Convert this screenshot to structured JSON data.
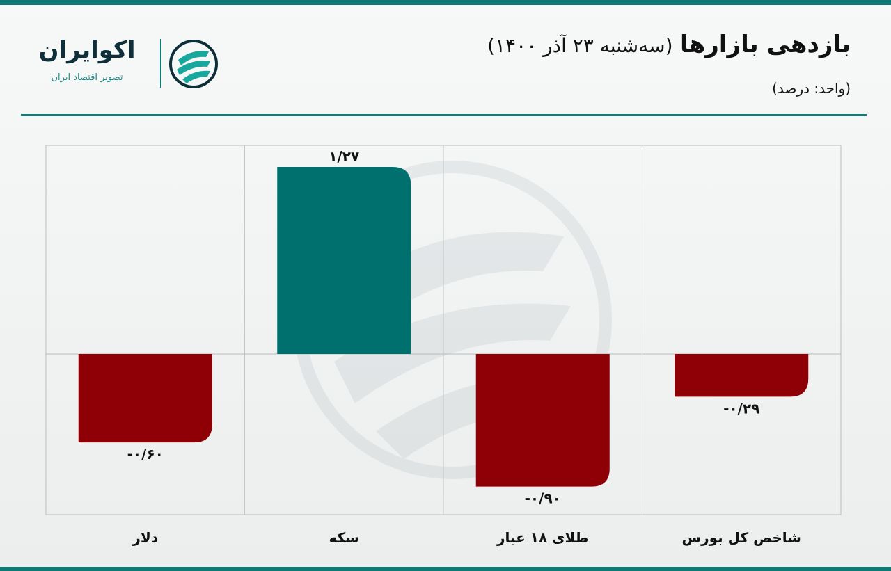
{
  "header": {
    "title_main": "بازدهی بازارها",
    "title_date": "(سه‌شنبه ۲۳ آذر ۱۴۰۰)",
    "unit": "(واحد: درصد)"
  },
  "logo": {
    "name": "اکوایران",
    "tagline": "تصویر اقتصاد ایران"
  },
  "colors": {
    "accent": "#0d7a76",
    "positive": "#00706e",
    "negative": "#8e0006"
  },
  "chart_data": {
    "type": "bar",
    "categories": [
      "دلار",
      "سکه",
      "طلای ۱۸ عیار",
      "شاخص کل بورس"
    ],
    "values": [
      -0.6,
      1.27,
      -0.9,
      -0.29
    ],
    "value_labels": [
      "-۰/۶۰",
      "۱/۲۷",
      "-۰/۹۰",
      "-۰/۲۹"
    ],
    "ylim": [
      -1.0,
      1.4
    ],
    "grid": true
  }
}
